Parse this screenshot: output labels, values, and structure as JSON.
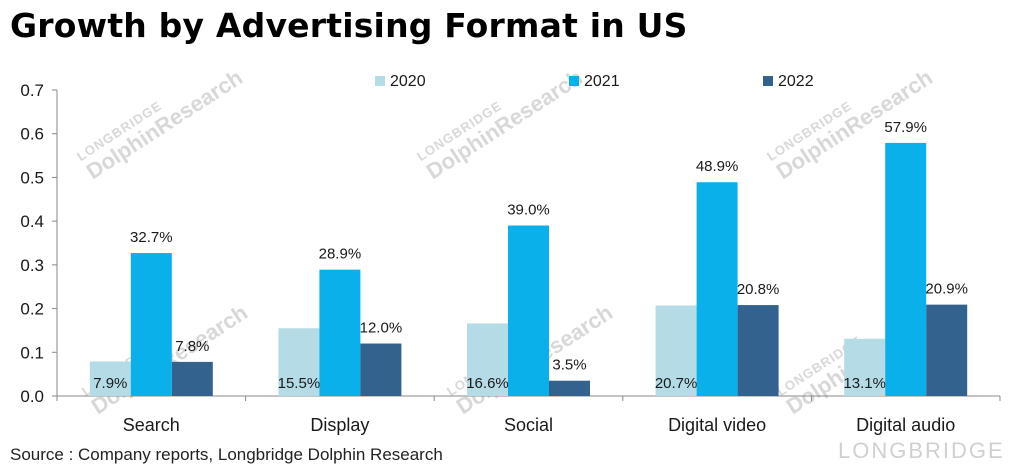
{
  "title": "Growth by Advertising Format in US",
  "source": "Source : Company reports, Longbridge Dolphin Research",
  "watermark": {
    "brand": "DolphinResearch",
    "sub": "LONGBRIDGE"
  },
  "corner_logo": "LONGBRIDGE",
  "colors": {
    "2020": "#b4dbe6",
    "2021": "#0ab0ea",
    "2022": "#33628f"
  },
  "chart_data": {
    "type": "bar",
    "categories": [
      "Search",
      "Display",
      "Social",
      "Digital video",
      "Digital audio"
    ],
    "series": [
      {
        "name": "2020",
        "values": [
          0.079,
          0.155,
          0.166,
          0.207,
          0.131
        ],
        "labels": [
          "7.9%",
          "15.5%",
          "16.6%",
          "20.7%",
          "13.1%"
        ]
      },
      {
        "name": "2021",
        "values": [
          0.327,
          0.289,
          0.39,
          0.489,
          0.579
        ],
        "labels": [
          "32.7%",
          "28.9%",
          "39.0%",
          "48.9%",
          "57.9%"
        ]
      },
      {
        "name": "2022",
        "values": [
          0.078,
          0.12,
          0.035,
          0.208,
          0.209
        ],
        "labels": [
          "7.8%",
          "12.0%",
          "3.5%",
          "20.8%",
          "20.9%"
        ]
      }
    ],
    "yticks": [
      "0.0",
      "0.1",
      "0.2",
      "0.3",
      "0.4",
      "0.5",
      "0.6",
      "0.7"
    ],
    "ylim": [
      0,
      0.7
    ],
    "legend_position": "top",
    "grid": false
  }
}
